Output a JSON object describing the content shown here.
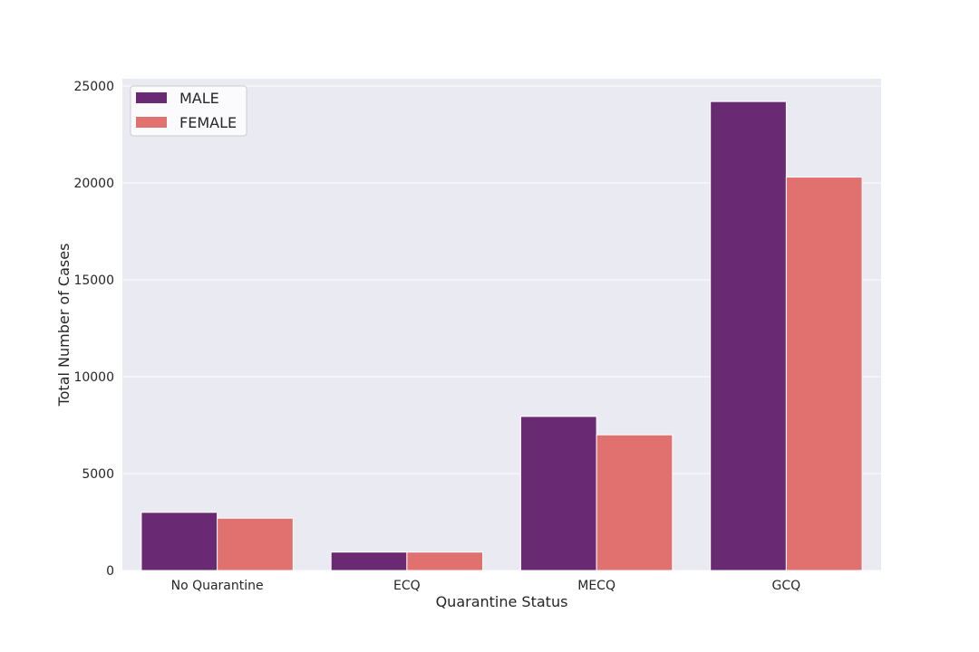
{
  "chart_data": {
    "type": "bar",
    "title": "",
    "xlabel": "Quarantine Status",
    "ylabel": "Total Number of Cases",
    "categories": [
      "No Quarantine",
      "ECQ",
      "MECQ",
      "GCQ"
    ],
    "series": [
      {
        "name": "MALE",
        "color": "#6a2a73",
        "values": [
          3000,
          950,
          7950,
          24200
        ]
      },
      {
        "name": "FEMALE",
        "color": "#e0716f",
        "values": [
          2700,
          950,
          7000,
          20300
        ]
      }
    ],
    "ylim": [
      0,
      25000
    ],
    "yticks": [
      "0",
      "5000",
      "10000",
      "15000",
      "20000",
      "25000"
    ],
    "grid": true,
    "background_color": "#eaeaf2",
    "legend_position": "top-left"
  }
}
